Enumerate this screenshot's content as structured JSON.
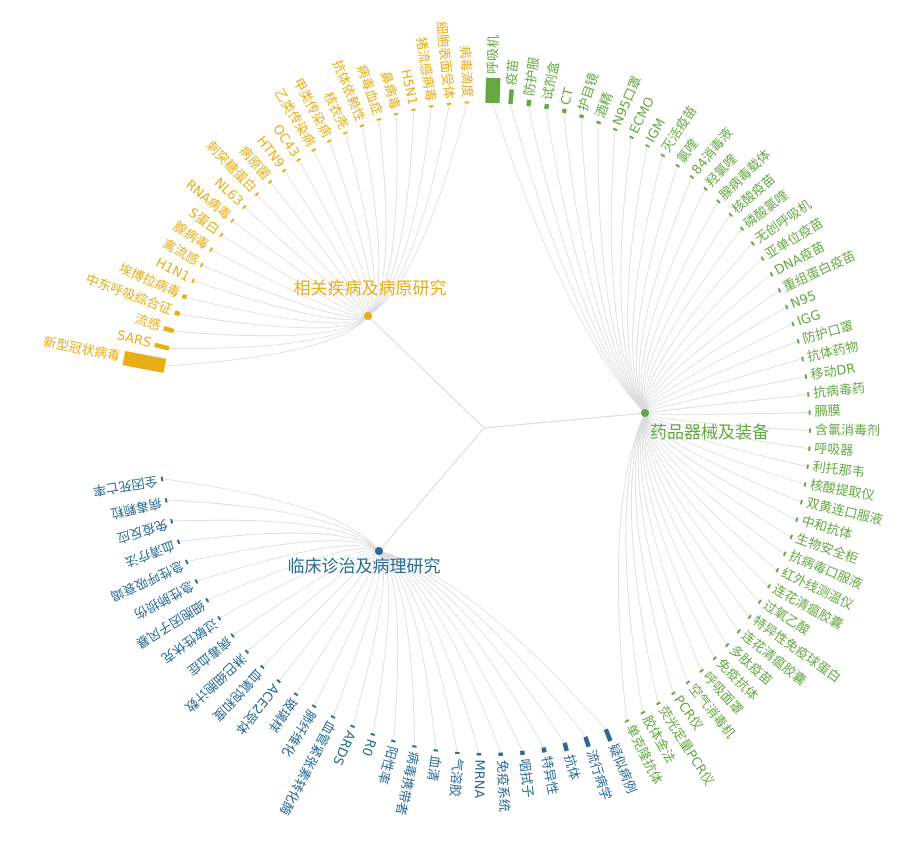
{
  "chart_data": {
    "type": "radial-tree",
    "root": "",
    "groups": [
      {
        "name": "相关疾病及病原研究",
        "color": "#e8ae17",
        "leaves": [
          "新型冠状病毒",
          "SARS",
          "流感",
          "中东呼吸综合征",
          "埃博拉病毒",
          "H1N1",
          "禽流感",
          "腺病毒",
          "S蛋白",
          "RNA病毒",
          "NL63",
          "刺突糖蛋白",
          "病原菌",
          "HTN9",
          "OC43",
          "乙类传染病",
          "甲类传染病",
          "核衣壳",
          "抗体依赖性",
          "病毒血症",
          "鼻病毒",
          "H5N1",
          "猪流感病毒",
          "细胞表面受体",
          "病毒滴度"
        ],
        "bars": [
          1.0,
          0.35,
          0.25,
          0.12,
          0.1,
          0.05,
          0.05,
          0.05,
          0.04,
          0.04,
          0.03,
          0.03,
          0.03,
          0.02,
          0.02,
          0.02,
          0.02,
          0.02,
          0.02,
          0.02,
          0.02,
          0.02,
          0.02,
          0.02,
          0.02
        ]
      },
      {
        "name": "药品器械及装备",
        "color": "#66a844",
        "leaves": [
          "呼吸机",
          "疫苗",
          "防护服",
          "试剂盒",
          "CT",
          "护目镜",
          "酒精",
          "N95口罩",
          "ECMO",
          "IGM",
          "灭活疫苗",
          "氯喹",
          "84消毒液",
          "羟氯喹",
          "腺病毒载体",
          "核酸疫苗",
          "磷酸氯喹",
          "无创呼吸机",
          "亚单位疫苗",
          "DNA疫苗",
          "重组蛋白疫苗",
          "N95",
          "IGG",
          "防护口罩",
          "抗体药物",
          "移动DR",
          "抗病毒药",
          "膈膜",
          "含氯消毒剂",
          "呼吸器",
          "利托那韦",
          "核酸提取仪",
          "双黄连口服液",
          "中和抗体",
          "生物安全柜",
          "抗病毒口服液",
          "红外线测温仪",
          "连花清瘟胶囊",
          "过氧乙酸",
          "特异性免疫球蛋白",
          "连花清瘟胶囊",
          "多肽疫苗",
          "免疫抗体",
          "呼吸面罩",
          "空气消毒机",
          "PCR仪",
          "荧光定量PCR仪",
          "胶体金法",
          "单克隆抗体"
        ],
        "bars": [
          0.6,
          0.35,
          0.15,
          0.12,
          0.1,
          0.08,
          0.06,
          0.05,
          0.04,
          0.04,
          0.04,
          0.03,
          0.03,
          0.03,
          0.03,
          0.03,
          0.03,
          0.02,
          0.02,
          0.02,
          0.02,
          0.02,
          0.02,
          0.02,
          0.02,
          0.02,
          0.02,
          0.02,
          0.02,
          0.02,
          0.02,
          0.02,
          0.02,
          0.02,
          0.02,
          0.02,
          0.02,
          0.02,
          0.02,
          0.02,
          0.02,
          0.02,
          0.02,
          0.02,
          0.02,
          0.02,
          0.02,
          0.02,
          0.02
        ]
      },
      {
        "name": "临床诊治及病理研究",
        "color": "#2a6a94",
        "leaves": [
          "疑似病例",
          "流行病学",
          "抗体",
          "特异性",
          "咽拭子",
          "免疫系统",
          "MRNA",
          "气溶胶",
          "血清",
          "病毒携带者",
          "阳性率",
          "R0",
          "ARDS",
          "血管紧张素转化酶",
          "肺纤维化",
          "玻璃样",
          "ACE2受体",
          "血氧饱和度",
          "淋巴细胞计数",
          "病毒血症",
          "过敏性休克",
          "细胞因子风暴",
          "急性肺损伤",
          "急性呼吸衰竭",
          "血清疗法",
          "免疫反应",
          "病毒颗粒",
          "全因死亡率"
        ],
        "bars": [
          0.3,
          0.25,
          0.2,
          0.12,
          0.1,
          0.08,
          0.06,
          0.05,
          0.04,
          0.04,
          0.03,
          0.03,
          0.03,
          0.02,
          0.02,
          0.02,
          0.02,
          0.02,
          0.02,
          0.02,
          0.02,
          0.02,
          0.02,
          0.02,
          0.02,
          0.02,
          0.02,
          0.02
        ]
      }
    ]
  }
}
